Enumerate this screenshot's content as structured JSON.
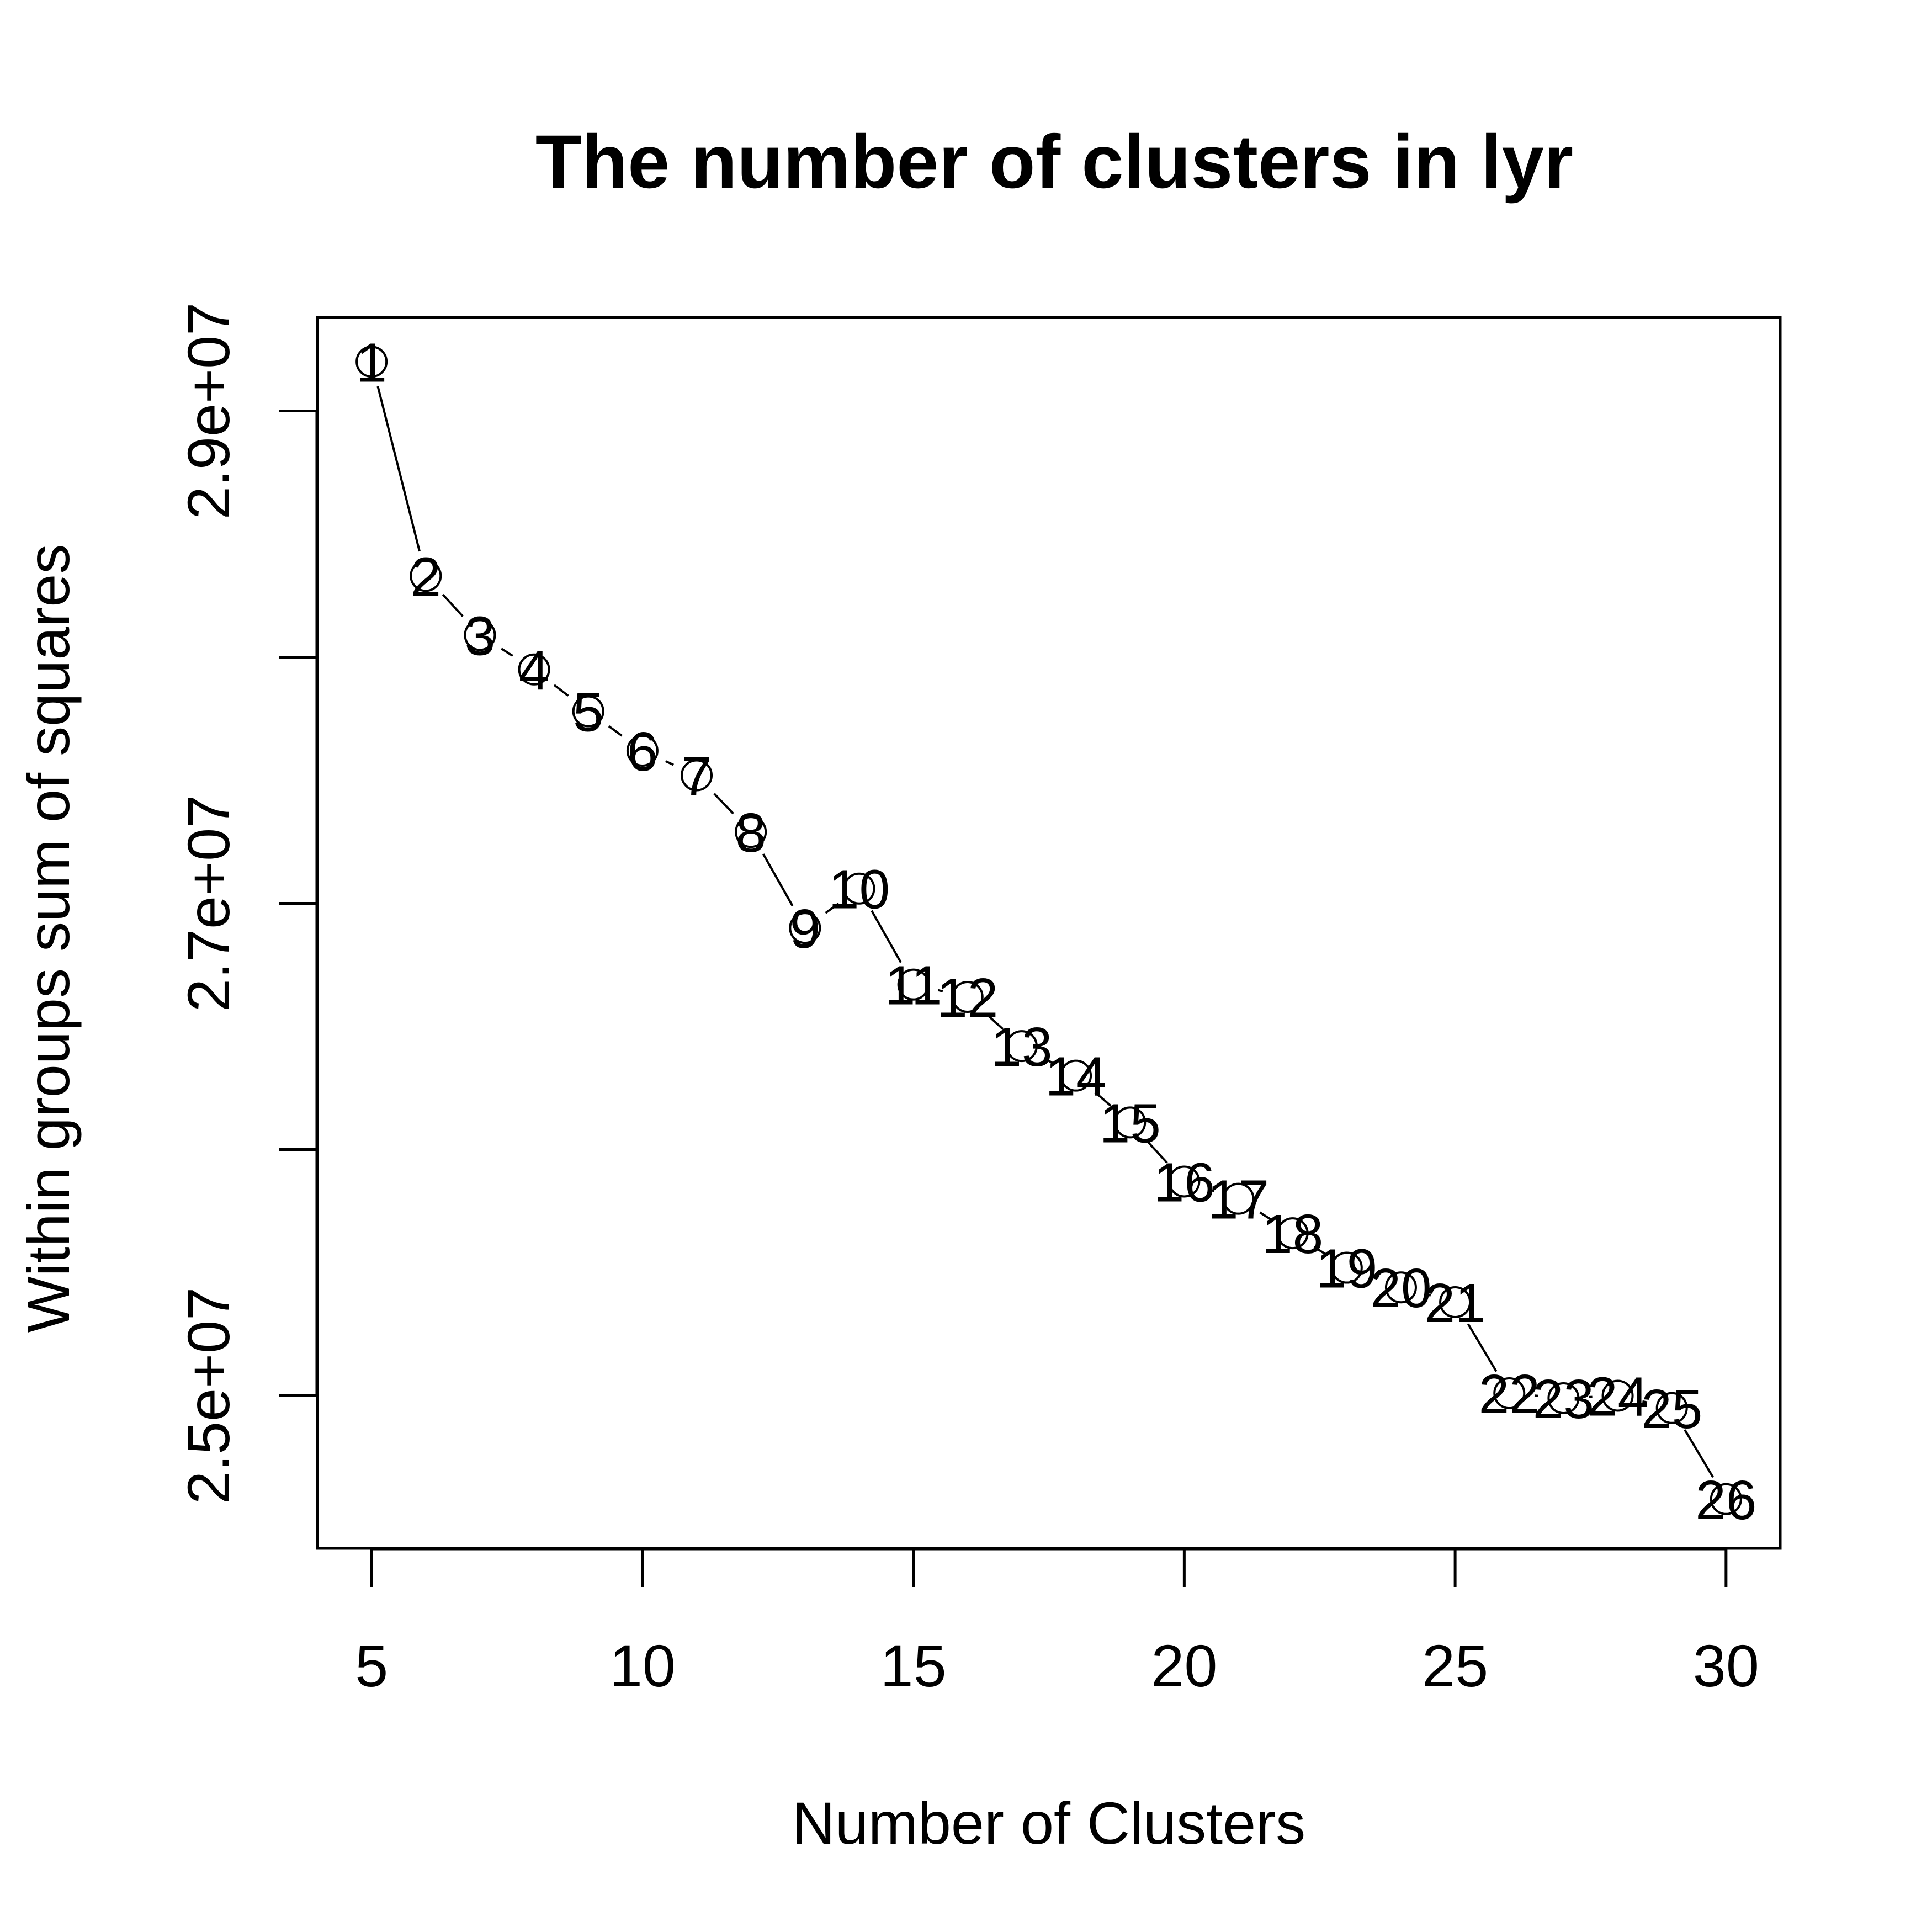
{
  "chart_data": {
    "type": "line",
    "title": "The number of clusters in lyr",
    "xlabel": "Number of Clusters",
    "ylabel": "Within groups sum of squares",
    "xlim": [
      4,
      31
    ],
    "ylim": [
      24380000,
      29380000
    ],
    "xticks": [
      5,
      10,
      15,
      20,
      25,
      30
    ],
    "xtick_labels": [
      "5",
      "10",
      "15",
      "20",
      "25",
      "30"
    ],
    "yticks": [
      25000000,
      26000000,
      27000000,
      28000000,
      29000000
    ],
    "ytick_labels": [
      "2.5e+07",
      "",
      "2.7e+07",
      "",
      "2.9e+07"
    ],
    "grid": false,
    "legend": "none",
    "marker": "open circle with point index label",
    "series": [
      {
        "x": [
          5,
          6,
          7,
          8,
          9,
          10,
          11,
          12,
          13,
          14,
          15,
          16,
          17,
          18,
          19,
          20,
          21,
          22,
          23,
          24,
          25,
          26,
          27,
          28,
          29,
          30
        ],
        "y": [
          29200000,
          28330000,
          28090000,
          27950000,
          27780000,
          27620000,
          27520000,
          27290000,
          26900000,
          27060000,
          26670000,
          26620000,
          26420000,
          26300000,
          26110000,
          25870000,
          25800000,
          25660000,
          25520000,
          25440000,
          25380000,
          25010000,
          24990000,
          25000000,
          24950000,
          24580000
        ],
        "labels": [
          "1",
          "2",
          "3",
          "4",
          "5",
          "6",
          "7",
          "8",
          "9",
          "10",
          "11",
          "12",
          "13",
          "14",
          "15",
          "16",
          "17",
          "18",
          "19",
          "20",
          "21",
          "22",
          "23",
          "24",
          "25",
          "26"
        ]
      }
    ]
  }
}
